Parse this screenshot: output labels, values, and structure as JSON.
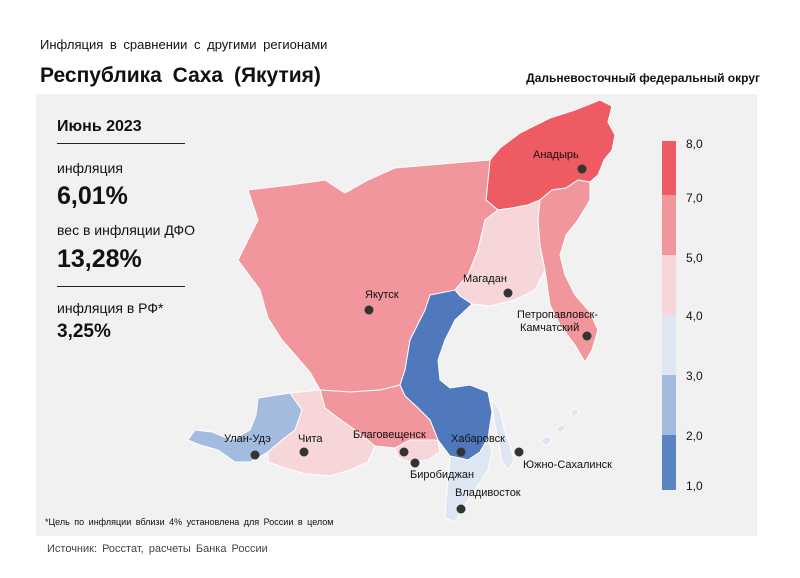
{
  "header": {
    "subtitle": "Инфляция в сравнении с другими регионами",
    "title": "Республика Саха (Якутия)",
    "district": "Дальневосточный федеральный округ"
  },
  "info": {
    "period": "Июнь 2023",
    "inflation_label": "инфляция",
    "inflation_value": "6,01%",
    "weight_label": "вес в инфляции ДФО",
    "weight_value": "13,28%",
    "rf_label": "инфляция в РФ*",
    "rf_value": "3,25%"
  },
  "legend": {
    "ticks": [
      "8,0",
      "7,0",
      "5,0",
      "4,0",
      "3,0",
      "2,0",
      "1,0"
    ],
    "colors": [
      "#ef5b63",
      "#f0969c",
      "#f7d6d9",
      "#dfe6f3",
      "#a2bbde",
      "#5b84c3"
    ]
  },
  "regions": [
    {
      "name": "Чукотка",
      "color": "#ef5b63"
    },
    {
      "name": "Якутия",
      "color": "#f0969c"
    },
    {
      "name": "Камчатка",
      "color": "#f0969c"
    },
    {
      "name": "Магадан",
      "color": "#f7d6d9"
    },
    {
      "name": "Хабаровский край",
      "color": "#4f79bc"
    },
    {
      "name": "Амурская область",
      "color": "#f0969c"
    },
    {
      "name": "Бурятия",
      "color": "#a2bbde"
    },
    {
      "name": "Забайкалье",
      "color": "#f7d6d9"
    },
    {
      "name": "ЕАО",
      "color": "#f7d6d9"
    },
    {
      "name": "Приморье",
      "color": "#dfe6f3"
    },
    {
      "name": "Сахалин",
      "color": "#dfe6f3"
    }
  ],
  "cities": [
    {
      "name": "Анадырь"
    },
    {
      "name": "Якутск"
    },
    {
      "name": "Магадан"
    },
    {
      "name": "Петропавловск-Камчатский"
    },
    {
      "name": "Улан-Удэ"
    },
    {
      "name": "Чита"
    },
    {
      "name": "Благовещенск"
    },
    {
      "name": "Хабаровск"
    },
    {
      "name": "Биробиджан"
    },
    {
      "name": "Южно-Сахалинск"
    },
    {
      "name": "Владивосток"
    }
  ],
  "footnote": "*Цель по инфляции вблизи 4% установлена для России в целом",
  "source": "Источник: Росстат, расчеты Банка России"
}
